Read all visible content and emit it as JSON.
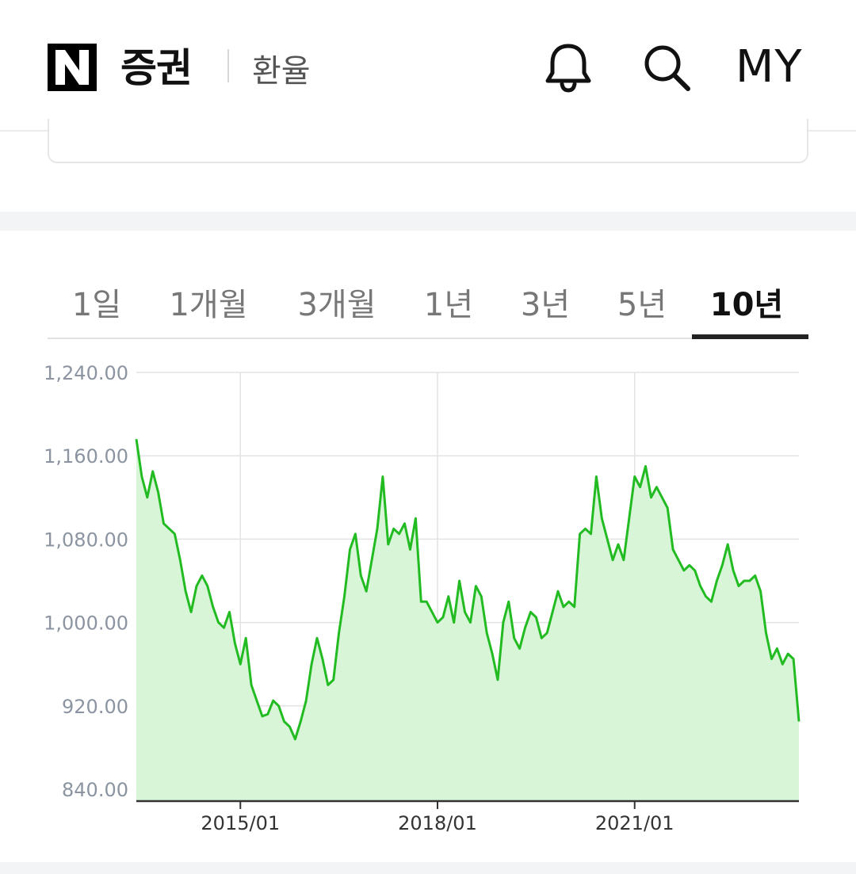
{
  "header": {
    "logo": "N",
    "brand": "증권",
    "section": "환율",
    "icons": [
      "bell-icon",
      "search-icon"
    ],
    "my_label": "MY"
  },
  "tabs": [
    {
      "label": "1일",
      "active": false
    },
    {
      "label": "1개월",
      "active": false
    },
    {
      "label": "3개월",
      "active": false
    },
    {
      "label": "1년",
      "active": false
    },
    {
      "label": "3년",
      "active": false
    },
    {
      "label": "5년",
      "active": false
    },
    {
      "label": "10년",
      "active": true
    }
  ],
  "colors": {
    "line": "#22bb22",
    "fill": "#d8f5d8",
    "grid": "#e3e3e3",
    "axis": "#333333",
    "tick_text": "#8b94a0"
  },
  "chart_data": {
    "type": "area",
    "x_axis": "date",
    "x_range": [
      "2013-06",
      "2023-07"
    ],
    "ylim": [
      835,
      1240
    ],
    "y_ticks": [
      {
        "value": 1240,
        "label": "1,240.00"
      },
      {
        "value": 1160,
        "label": "1,160.00"
      },
      {
        "value": 1080,
        "label": "1,080.00"
      },
      {
        "value": 1000,
        "label": "1,000.00"
      },
      {
        "value": 920,
        "label": "920.00"
      },
      {
        "value": 840,
        "label": "840.00"
      }
    ],
    "x_ticks": [
      {
        "date": "2015-01",
        "label": "2015/01"
      },
      {
        "date": "2018-01",
        "label": "2018/01"
      },
      {
        "date": "2021-01",
        "label": "2021/01"
      }
    ],
    "grid": true,
    "series": [
      {
        "points": [
          [
            "2013-06",
            1176
          ],
          [
            "2013-07",
            1140
          ],
          [
            "2013-08",
            1120
          ],
          [
            "2013-09",
            1145
          ],
          [
            "2013-10",
            1125
          ],
          [
            "2013-11",
            1095
          ],
          [
            "2013-12",
            1090
          ],
          [
            "2014-01",
            1085
          ],
          [
            "2014-02",
            1060
          ],
          [
            "2014-03",
            1030
          ],
          [
            "2014-04",
            1010
          ],
          [
            "2014-05",
            1035
          ],
          [
            "2014-06",
            1045
          ],
          [
            "2014-07",
            1035
          ],
          [
            "2014-08",
            1015
          ],
          [
            "2014-09",
            1000
          ],
          [
            "2014-10",
            995
          ],
          [
            "2014-11",
            1010
          ],
          [
            "2014-12",
            980
          ],
          [
            "2015-01",
            960
          ],
          [
            "2015-02",
            985
          ],
          [
            "2015-03",
            940
          ],
          [
            "2015-04",
            925
          ],
          [
            "2015-05",
            910
          ],
          [
            "2015-06",
            912
          ],
          [
            "2015-07",
            925
          ],
          [
            "2015-08",
            920
          ],
          [
            "2015-09",
            905
          ],
          [
            "2015-10",
            900
          ],
          [
            "2015-11",
            888
          ],
          [
            "2015-12",
            905
          ],
          [
            "2016-01",
            925
          ],
          [
            "2016-02",
            960
          ],
          [
            "2016-03",
            985
          ],
          [
            "2016-04",
            965
          ],
          [
            "2016-05",
            940
          ],
          [
            "2016-06",
            945
          ],
          [
            "2016-07",
            990
          ],
          [
            "2016-08",
            1025
          ],
          [
            "2016-09",
            1070
          ],
          [
            "2016-10",
            1085
          ],
          [
            "2016-11",
            1045
          ],
          [
            "2016-12",
            1030
          ],
          [
            "2017-01",
            1060
          ],
          [
            "2017-02",
            1090
          ],
          [
            "2017-03",
            1140
          ],
          [
            "2017-04",
            1075
          ],
          [
            "2017-05",
            1090
          ],
          [
            "2017-06",
            1085
          ],
          [
            "2017-07",
            1095
          ],
          [
            "2017-08",
            1070
          ],
          [
            "2017-09",
            1100
          ],
          [
            "2017-10",
            1020
          ],
          [
            "2017-11",
            1020
          ],
          [
            "2017-12",
            1010
          ],
          [
            "2018-01",
            1000
          ],
          [
            "2018-02",
            1005
          ],
          [
            "2018-03",
            1025
          ],
          [
            "2018-04",
            1000
          ],
          [
            "2018-05",
            1040
          ],
          [
            "2018-06",
            1010
          ],
          [
            "2018-07",
            1000
          ],
          [
            "2018-08",
            1035
          ],
          [
            "2018-09",
            1025
          ],
          [
            "2018-10",
            990
          ],
          [
            "2018-11",
            970
          ],
          [
            "2018-12",
            945
          ],
          [
            "2019-01",
            1000
          ],
          [
            "2019-02",
            1020
          ],
          [
            "2019-03",
            985
          ],
          [
            "2019-04",
            975
          ],
          [
            "2019-05",
            995
          ],
          [
            "2019-06",
            1010
          ],
          [
            "2019-07",
            1005
          ],
          [
            "2019-08",
            985
          ],
          [
            "2019-09",
            990
          ],
          [
            "2019-10",
            1010
          ],
          [
            "2019-11",
            1030
          ],
          [
            "2019-12",
            1015
          ],
          [
            "2020-01",
            1020
          ],
          [
            "2020-02",
            1015
          ],
          [
            "2020-03",
            1085
          ],
          [
            "2020-04",
            1090
          ],
          [
            "2020-05",
            1085
          ],
          [
            "2020-06",
            1140
          ],
          [
            "2020-07",
            1100
          ],
          [
            "2020-08",
            1080
          ],
          [
            "2020-09",
            1060
          ],
          [
            "2020-10",
            1075
          ],
          [
            "2020-11",
            1060
          ],
          [
            "2020-12",
            1100
          ],
          [
            "2021-01",
            1140
          ],
          [
            "2021-02",
            1130
          ],
          [
            "2021-03",
            1150
          ],
          [
            "2021-04",
            1120
          ],
          [
            "2021-05",
            1130
          ],
          [
            "2021-06",
            1120
          ],
          [
            "2021-07",
            1110
          ],
          [
            "2021-08",
            1070
          ],
          [
            "2021-09",
            1060
          ],
          [
            "2021-10",
            1050
          ],
          [
            "2021-11",
            1055
          ],
          [
            "2021-12",
            1050
          ],
          [
            "2022-01",
            1035
          ],
          [
            "2022-02",
            1025
          ],
          [
            "2022-03",
            1020
          ],
          [
            "2022-04",
            1040
          ],
          [
            "2022-05",
            1055
          ],
          [
            "2022-06",
            1075
          ],
          [
            "2022-07",
            1050
          ],
          [
            "2022-08",
            1035
          ],
          [
            "2022-09",
            1040
          ],
          [
            "2022-10",
            1040
          ],
          [
            "2022-11",
            1045
          ],
          [
            "2022-12",
            1030
          ],
          [
            "2023-01",
            990
          ],
          [
            "2023-02",
            965
          ],
          [
            "2023-03",
            975
          ],
          [
            "2023-04",
            960
          ],
          [
            "2023-05",
            970
          ],
          [
            "2023-06",
            965
          ],
          [
            "2023-07",
            905
          ]
        ]
      }
    ]
  }
}
